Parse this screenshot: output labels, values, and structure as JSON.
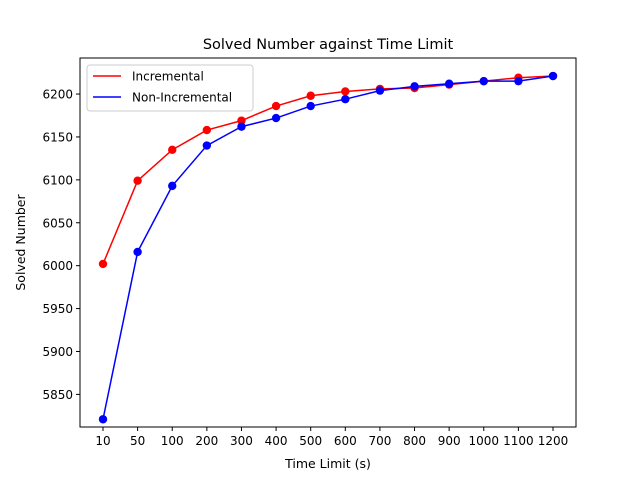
{
  "chart_data": {
    "type": "line",
    "title": "Solved Number against Time Limit",
    "xlabel": "Time Limit (s)",
    "ylabel": "Solved Number",
    "categories": [
      "10",
      "50",
      "100",
      "200",
      "300",
      "400",
      "500",
      "600",
      "700",
      "800",
      "900",
      "1000",
      "1100",
      "1200"
    ],
    "ylim": [
      5812,
      6242
    ],
    "yticks": [
      5850,
      5900,
      5950,
      6000,
      6050,
      6100,
      6150,
      6200
    ],
    "grid": false,
    "legend_position": "top-left",
    "series": [
      {
        "name": "Incremental",
        "color": "#ff0000",
        "values": [
          6002,
          6099,
          6135,
          6158,
          6169,
          6186,
          6198,
          6203,
          6206,
          6207,
          6211,
          6215,
          6219,
          6221
        ]
      },
      {
        "name": "Non-Incremental",
        "color": "#0000ff",
        "values": [
          5821,
          6016,
          6093,
          6140,
          6162,
          6172,
          6186,
          6194,
          6204,
          6209,
          6212,
          6215,
          6215,
          6221
        ]
      }
    ]
  }
}
